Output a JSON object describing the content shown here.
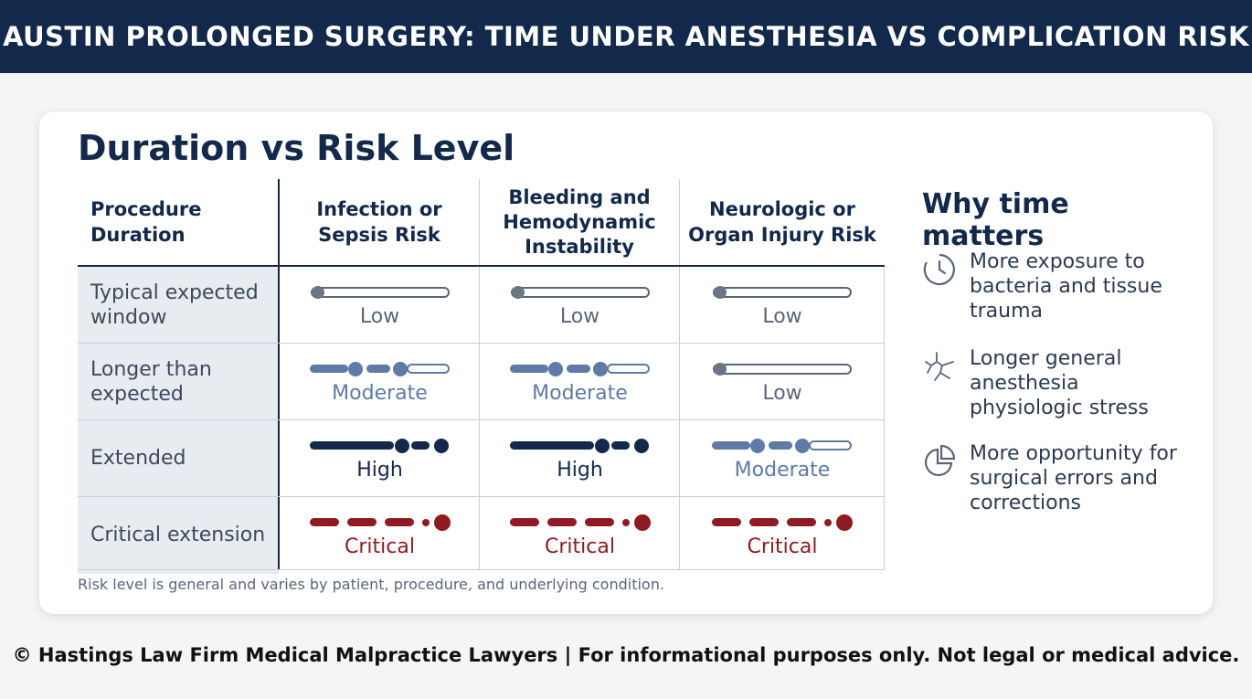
{
  "header": {
    "title": "AUSTIN PROLONGED SURGERY: TIME UNDER ANESTHESIA VS COMPLICATION RISK"
  },
  "card": {
    "title": "Duration vs Risk Level",
    "columns": [
      "Procedure Duration",
      "Infection or Sepsis Risk",
      "Bleeding and Hemodynamic Instability",
      "Neurologic or Organ Injury Risk"
    ],
    "rows": [
      {
        "label": "Typical expected window",
        "cells": [
          "Low",
          "Low",
          "Low"
        ]
      },
      {
        "label": "Longer than expected",
        "cells": [
          "Moderate",
          "Moderate",
          "Low"
        ]
      },
      {
        "label": "Extended",
        "cells": [
          "High",
          "High",
          "Moderate"
        ]
      },
      {
        "label": "Critical extension",
        "cells": [
          "Critical",
          "Critical",
          "Critical"
        ]
      }
    ],
    "note": "Risk level is general and varies by patient, procedure, and underlying condition."
  },
  "side": {
    "title": "Why time matters",
    "items": [
      {
        "icon": "clock-icon",
        "text": "More exposure to bacteria and tissue trauma"
      },
      {
        "icon": "network-icon",
        "text": "Longer general anesthesia physiologic stress"
      },
      {
        "icon": "pie-chart-icon",
        "text": "More opportunity for surgical errors and corrections"
      }
    ]
  },
  "colors": {
    "navy": "#13294b",
    "low": "#5a6678",
    "moderate": "#5f7aa6",
    "critical": "#8e1b21"
  },
  "footer": {
    "text": "© Hastings Law Firm Medical Malpractice Lawyers | For informational purposes only. Not legal or medical advice."
  }
}
